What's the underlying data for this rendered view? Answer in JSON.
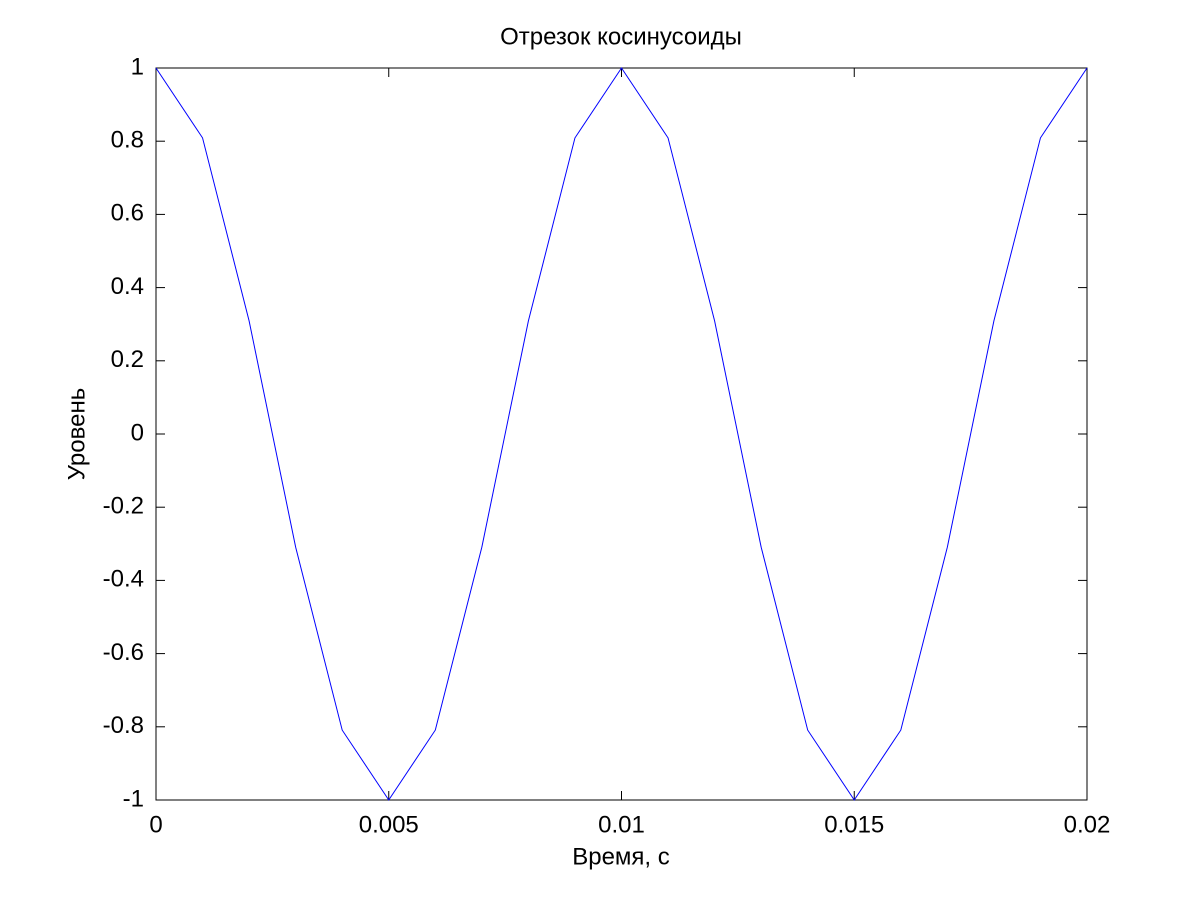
{
  "chart_data": {
    "type": "line",
    "title": "Отрезок косинусоиды",
    "xlabel": "Время, с",
    "ylabel": "Уровень",
    "x": [
      0,
      0.001,
      0.002,
      0.003,
      0.004,
      0.005,
      0.006,
      0.007,
      0.008,
      0.009,
      0.01,
      0.011,
      0.012,
      0.013,
      0.014,
      0.015,
      0.016,
      0.017,
      0.018,
      0.019,
      0.02
    ],
    "series": [
      {
        "color": "#0000ff",
        "values": [
          1,
          0.809,
          0.309,
          -0.309,
          -0.809,
          -1,
          -0.809,
          -0.309,
          0.309,
          0.809,
          1,
          0.809,
          0.309,
          -0.309,
          -0.809,
          -1,
          -0.809,
          -0.309,
          0.309,
          0.809,
          1
        ]
      }
    ],
    "xlim": [
      0,
      0.02
    ],
    "xticks": [
      0,
      0.005,
      0.01,
      0.015,
      0.02
    ],
    "ylim": [
      -1,
      1
    ],
    "yticks": [
      -1,
      -0.8,
      -0.6,
      -0.4,
      -0.2,
      0,
      0.2,
      0.4,
      0.6,
      0.8,
      1
    ],
    "grid": false
  }
}
